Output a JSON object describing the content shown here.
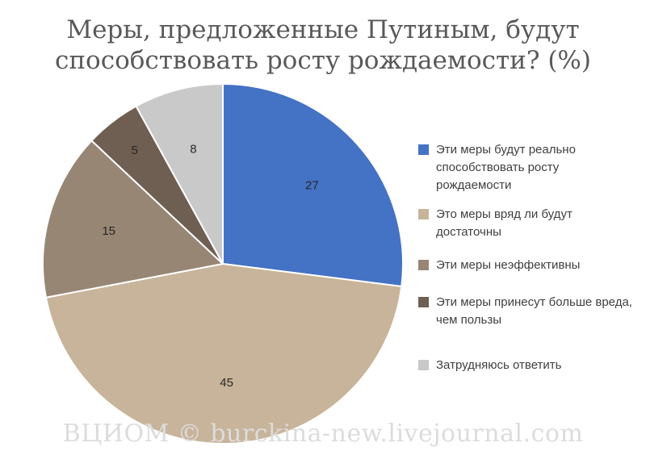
{
  "chart_data": {
    "type": "pie",
    "title": "Меры, предложенные Путиным, будут способствовать росту рождаемости? (%)",
    "title_lines": [
      "Меры, предложенные Путиным, будут",
      "способствовать росту рождаемости? (%)"
    ],
    "slices": [
      {
        "label": "Эти меры будут реально способствовать росту рождаемости",
        "value": 27,
        "color": "#4472c4"
      },
      {
        "label": "Это меры вряд ли будут достаточны",
        "value": 45,
        "color": "#c8b49a"
      },
      {
        "label": "Эти меры неэффективны",
        "value": 15,
        "color": "#988675"
      },
      {
        "label": "Эти меры принесут больше вреда, чем пользы",
        "value": 5,
        "color": "#6f5f52"
      },
      {
        "label": "Затрудняюсь ответить",
        "value": 8,
        "color": "#c9c9c9"
      }
    ],
    "legend_position": "right"
  },
  "watermark": "ВЦИОМ © burckina-new.livejournal.com"
}
